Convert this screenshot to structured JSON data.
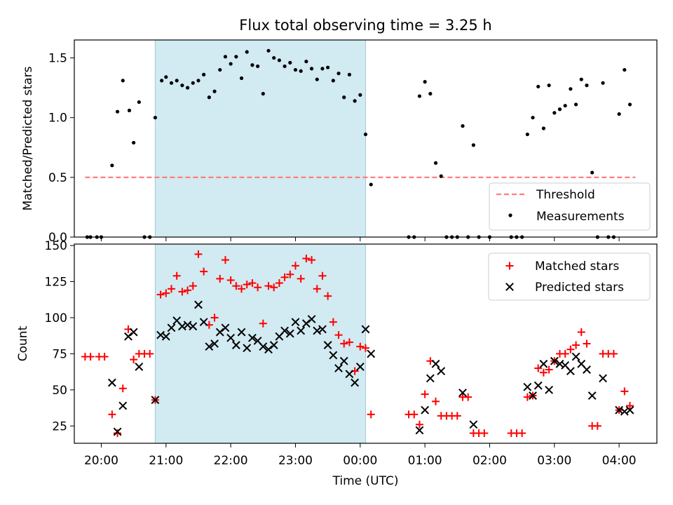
{
  "chart_data": [
    {
      "type": "scatter",
      "title": "Flux total observing time = 3.25 h",
      "xlabel": "",
      "ylabel": "Matched/Predicted stars",
      "x_is_time": true,
      "xlim": [
        "19:35",
        "04:35"
      ],
      "ylim": [
        0,
        1.65
      ],
      "yticks": [
        0.0,
        0.5,
        1.0,
        1.5
      ],
      "ytick_labels": [
        "0.0",
        "0.5",
        "1.0",
        "1.5"
      ],
      "grid": false,
      "legend_position": "lower-right",
      "shaded_interval": {
        "start": "20:50",
        "end": "00:05",
        "color": "#add8e6"
      },
      "threshold": {
        "name": "Threshold",
        "y": 0.5,
        "x_range": [
          "19:45",
          "04:15"
        ],
        "color": "#ff7f7f"
      },
      "series": [
        {
          "name": "Measurements",
          "marker": "dot",
          "color": "#000000",
          "points": [
            [
              "19:47",
              0
            ],
            [
              "19:50",
              0
            ],
            [
              "19:56",
              0
            ],
            [
              "20:00",
              0
            ],
            [
              "20:10",
              0.6
            ],
            [
              "20:15",
              1.05
            ],
            [
              "20:20",
              1.31
            ],
            [
              "20:26",
              1.06
            ],
            [
              "20:30",
              0.79
            ],
            [
              "20:35",
              1.13
            ],
            [
              "20:40",
              0
            ],
            [
              "20:45",
              0
            ],
            [
              "20:50",
              1.0
            ],
            [
              "20:56",
              1.31
            ],
            [
              "21:00",
              1.34
            ],
            [
              "21:05",
              1.29
            ],
            [
              "21:10",
              1.31
            ],
            [
              "21:15",
              1.27
            ],
            [
              "21:20",
              1.25
            ],
            [
              "21:25",
              1.29
            ],
            [
              "21:30",
              1.31
            ],
            [
              "21:35",
              1.36
            ],
            [
              "21:40",
              1.17
            ],
            [
              "21:45",
              1.22
            ],
            [
              "21:50",
              1.4
            ],
            [
              "21:55",
              1.51
            ],
            [
              "22:00",
              1.45
            ],
            [
              "22:05",
              1.51
            ],
            [
              "22:10",
              1.33
            ],
            [
              "22:15",
              1.55
            ],
            [
              "22:20",
              1.44
            ],
            [
              "22:25",
              1.43
            ],
            [
              "22:30",
              1.2
            ],
            [
              "22:35",
              1.56
            ],
            [
              "22:40",
              1.5
            ],
            [
              "22:45",
              1.48
            ],
            [
              "22:50",
              1.43
            ],
            [
              "22:55",
              1.46
            ],
            [
              "23:00",
              1.4
            ],
            [
              "23:05",
              1.39
            ],
            [
              "23:10",
              1.47
            ],
            [
              "23:15",
              1.41
            ],
            [
              "23:20",
              1.32
            ],
            [
              "23:25",
              1.41
            ],
            [
              "23:30",
              1.42
            ],
            [
              "23:35",
              1.31
            ],
            [
              "23:40",
              1.37
            ],
            [
              "23:45",
              1.17
            ],
            [
              "23:50",
              1.36
            ],
            [
              "23:55",
              1.14
            ],
            [
              "00:00",
              1.19
            ],
            [
              "00:05",
              0.86
            ],
            [
              "00:10",
              0.44
            ],
            [
              "00:45",
              0
            ],
            [
              "00:50",
              0
            ],
            [
              "00:55",
              1.18
            ],
            [
              "01:00",
              1.3
            ],
            [
              "01:05",
              1.2
            ],
            [
              "01:10",
              0.62
            ],
            [
              "01:15",
              0.51
            ],
            [
              "01:20",
              0
            ],
            [
              "01:25",
              0
            ],
            [
              "01:30",
              0
            ],
            [
              "01:35",
              0.93
            ],
            [
              "01:40",
              0
            ],
            [
              "01:45",
              0.77
            ],
            [
              "01:50",
              0
            ],
            [
              "02:00",
              0
            ],
            [
              "02:20",
              0
            ],
            [
              "02:25",
              0
            ],
            [
              "02:30",
              0
            ],
            [
              "02:35",
              0.86
            ],
            [
              "02:40",
              1.0
            ],
            [
              "02:45",
              1.26
            ],
            [
              "02:50",
              0.91
            ],
            [
              "02:55",
              1.27
            ],
            [
              "03:00",
              1.04
            ],
            [
              "03:05",
              1.07
            ],
            [
              "03:10",
              1.1
            ],
            [
              "03:15",
              1.24
            ],
            [
              "03:20",
              1.11
            ],
            [
              "03:25",
              1.32
            ],
            [
              "03:30",
              1.27
            ],
            [
              "03:35",
              0.54
            ],
            [
              "03:40",
              0
            ],
            [
              "03:45",
              1.29
            ],
            [
              "03:50",
              0
            ],
            [
              "03:55",
              0
            ],
            [
              "04:00",
              1.03
            ],
            [
              "04:05",
              1.4
            ],
            [
              "04:10",
              1.11
            ]
          ]
        }
      ]
    },
    {
      "type": "scatter",
      "title": "",
      "xlabel": "Time (UTC)",
      "ylabel": "Count",
      "x_is_time": true,
      "xlim": [
        "19:35",
        "04:35"
      ],
      "ylim": [
        13,
        151
      ],
      "xticks": [
        "20:00",
        "21:00",
        "22:00",
        "23:00",
        "00:00",
        "01:00",
        "02:00",
        "03:00",
        "04:00"
      ],
      "yticks": [
        25,
        50,
        75,
        100,
        125,
        150
      ],
      "ytick_labels": [
        "25",
        "50",
        "75",
        "100",
        "125",
        "150"
      ],
      "grid": false,
      "legend_position": "upper-right",
      "shaded_interval": {
        "start": "20:50",
        "end": "00:05",
        "color": "#add8e6"
      },
      "series": [
        {
          "name": "Matched stars",
          "marker": "plus",
          "color": "#ff0000",
          "points": [
            [
              "19:45",
              73
            ],
            [
              "19:50",
              73
            ],
            [
              "19:58",
              73
            ],
            [
              "20:03",
              73
            ],
            [
              "20:10",
              33
            ],
            [
              "20:15",
              20
            ],
            [
              "20:20",
              51
            ],
            [
              "20:25",
              92
            ],
            [
              "20:30",
              71
            ],
            [
              "20:35",
              75
            ],
            [
              "20:40",
              75
            ],
            [
              "20:45",
              75
            ],
            [
              "20:50",
              43
            ],
            [
              "20:55",
              116
            ],
            [
              "21:00",
              117
            ],
            [
              "21:05",
              120
            ],
            [
              "21:10",
              129
            ],
            [
              "21:15",
              118
            ],
            [
              "21:20",
              119
            ],
            [
              "21:25",
              122
            ],
            [
              "21:30",
              144
            ],
            [
              "21:35",
              132
            ],
            [
              "21:40",
              95
            ],
            [
              "21:45",
              100
            ],
            [
              "21:50",
              127
            ],
            [
              "21:55",
              140
            ],
            [
              "22:00",
              126
            ],
            [
              "22:05",
              122
            ],
            [
              "22:10",
              120
            ],
            [
              "22:15",
              123
            ],
            [
              "22:20",
              124
            ],
            [
              "22:25",
              121
            ],
            [
              "22:30",
              96
            ],
            [
              "22:35",
              122
            ],
            [
              "22:40",
              121
            ],
            [
              "22:45",
              124
            ],
            [
              "22:50",
              128
            ],
            [
              "22:55",
              130
            ],
            [
              "23:00",
              136
            ],
            [
              "23:05",
              127
            ],
            [
              "23:10",
              141
            ],
            [
              "23:15",
              140
            ],
            [
              "23:20",
              120
            ],
            [
              "23:25",
              129
            ],
            [
              "23:30",
              115
            ],
            [
              "23:35",
              97
            ],
            [
              "23:40",
              88
            ],
            [
              "23:45",
              82
            ],
            [
              "23:50",
              83
            ],
            [
              "23:55",
              63
            ],
            [
              "00:00",
              80
            ],
            [
              "00:05",
              79
            ],
            [
              "00:10",
              33
            ],
            [
              "00:45",
              33
            ],
            [
              "00:50",
              33
            ],
            [
              "00:55",
              26
            ],
            [
              "01:00",
              47
            ],
            [
              "01:05",
              70
            ],
            [
              "01:10",
              42
            ],
            [
              "01:15",
              32
            ],
            [
              "01:20",
              32
            ],
            [
              "01:25",
              32
            ],
            [
              "01:30",
              32
            ],
            [
              "01:35",
              45
            ],
            [
              "01:40",
              45
            ],
            [
              "01:45",
              20
            ],
            [
              "01:50",
              20
            ],
            [
              "01:55",
              20
            ],
            [
              "02:20",
              20
            ],
            [
              "02:25",
              20
            ],
            [
              "02:30",
              20
            ],
            [
              "02:35",
              45
            ],
            [
              "02:40",
              46
            ],
            [
              "02:45",
              65
            ],
            [
              "02:50",
              62
            ],
            [
              "02:55",
              64
            ],
            [
              "03:00",
              70
            ],
            [
              "03:05",
              75
            ],
            [
              "03:10",
              75
            ],
            [
              "03:15",
              78
            ],
            [
              "03:20",
              81
            ],
            [
              "03:25",
              90
            ],
            [
              "03:30",
              82
            ],
            [
              "03:35",
              25
            ],
            [
              "03:40",
              25
            ],
            [
              "03:45",
              75
            ],
            [
              "03:50",
              75
            ],
            [
              "03:55",
              75
            ],
            [
              "04:00",
              36
            ],
            [
              "04:05",
              49
            ],
            [
              "04:10",
              39
            ]
          ]
        },
        {
          "name": "Predicted stars",
          "marker": "x",
          "color": "#000000",
          "points": [
            [
              "20:10",
              55
            ],
            [
              "20:15",
              21
            ],
            [
              "20:20",
              39
            ],
            [
              "20:25",
              87
            ],
            [
              "20:30",
              90
            ],
            [
              "20:35",
              66
            ],
            [
              "20:50",
              43
            ],
            [
              "20:55",
              88
            ],
            [
              "21:00",
              87
            ],
            [
              "21:05",
              93
            ],
            [
              "21:10",
              98
            ],
            [
              "21:15",
              94
            ],
            [
              "21:20",
              95
            ],
            [
              "21:25",
              94
            ],
            [
              "21:30",
              109
            ],
            [
              "21:35",
              97
            ],
            [
              "21:40",
              80
            ],
            [
              "21:45",
              82
            ],
            [
              "21:50",
              90
            ],
            [
              "21:55",
              93
            ],
            [
              "22:00",
              86
            ],
            [
              "22:05",
              81
            ],
            [
              "22:10",
              90
            ],
            [
              "22:15",
              79
            ],
            [
              "22:20",
              86
            ],
            [
              "22:25",
              84
            ],
            [
              "22:30",
              80
            ],
            [
              "22:35",
              78
            ],
            [
              "22:40",
              81
            ],
            [
              "22:45",
              87
            ],
            [
              "22:50",
              91
            ],
            [
              "22:55",
              89
            ],
            [
              "23:00",
              97
            ],
            [
              "23:05",
              91
            ],
            [
              "23:10",
              96
            ],
            [
              "23:15",
              99
            ],
            [
              "23:20",
              91
            ],
            [
              "23:25",
              92
            ],
            [
              "23:30",
              81
            ],
            [
              "23:35",
              74
            ],
            [
              "23:40",
              65
            ],
            [
              "23:45",
              70
            ],
            [
              "23:50",
              61
            ],
            [
              "23:55",
              55
            ],
            [
              "00:00",
              66
            ],
            [
              "00:05",
              92
            ],
            [
              "00:10",
              75
            ],
            [
              "00:55",
              22
            ],
            [
              "01:00",
              36
            ],
            [
              "01:05",
              58
            ],
            [
              "01:10",
              68
            ],
            [
              "01:15",
              63
            ],
            [
              "01:35",
              48
            ],
            [
              "01:45",
              26
            ],
            [
              "02:35",
              52
            ],
            [
              "02:40",
              46
            ],
            [
              "02:45",
              53
            ],
            [
              "02:50",
              68
            ],
            [
              "02:55",
              50
            ],
            [
              "03:00",
              70
            ],
            [
              "03:05",
              68
            ],
            [
              "03:10",
              67
            ],
            [
              "03:15",
              63
            ],
            [
              "03:20",
              73
            ],
            [
              "03:25",
              68
            ],
            [
              "03:30",
              64
            ],
            [
              "03:35",
              46
            ],
            [
              "03:45",
              58
            ],
            [
              "04:00",
              36
            ],
            [
              "04:05",
              35
            ],
            [
              "04:10",
              36
            ]
          ]
        }
      ]
    }
  ]
}
